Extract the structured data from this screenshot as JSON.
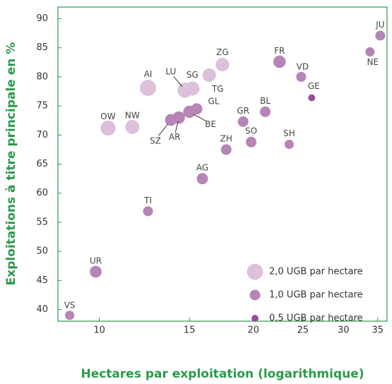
{
  "chart_data": {
    "type": "scatter",
    "x_label": "Hectares par exploitation (logarithmique)",
    "y_label": "Exploitations à titre principale en %",
    "xscale": "log",
    "xlim": [
      8.3,
      36.5
    ],
    "ylim": [
      38,
      92
    ],
    "xticks": [
      10,
      15,
      20,
      25,
      30,
      35
    ],
    "yticks": [
      40,
      45,
      50,
      55,
      60,
      65,
      70,
      75,
      80,
      85,
      90
    ],
    "labels": [
      "VS",
      "UR",
      "TI",
      "AG",
      "ZH",
      "SO",
      "SH",
      "GR",
      "BL",
      "OW",
      "NW",
      "SZ",
      "AR",
      "BE",
      "GL",
      "AI",
      "LU",
      "SG",
      "TG",
      "ZG",
      "FR",
      "VD",
      "GE",
      "NE",
      "JU"
    ],
    "x": [
      8.75,
      9.84,
      12.45,
      15.9,
      17.7,
      19.8,
      23.5,
      19.1,
      21.1,
      10.4,
      11.6,
      13.8,
      14.3,
      15.0,
      15.5,
      12.45,
      14.7,
      15.2,
      16.4,
      17.4,
      22.5,
      24.8,
      26.0,
      33.8,
      35.4
    ],
    "y": [
      39.0,
      46.5,
      56.9,
      62.5,
      67.5,
      68.8,
      68.4,
      72.3,
      74.0,
      71.2,
      71.4,
      72.6,
      73.0,
      74.0,
      74.5,
      78.1,
      77.7,
      78.0,
      80.3,
      82.1,
      82.6,
      80.0,
      76.4,
      84.3,
      87.1
    ],
    "sizes": [
      0.8,
      1.2,
      0.9,
      1.1,
      1.0,
      1.0,
      0.8,
      1.0,
      1.0,
      1.8,
      1.6,
      1.2,
      1.3,
      1.3,
      1.1,
      2.0,
      1.8,
      1.6,
      1.5,
      1.5,
      1.3,
      0.9,
      0.5,
      0.8,
      0.9
    ],
    "legend": [
      {
        "label": "2,0 UGB par hectare",
        "size": 2.0,
        "color": "#dcc0dc"
      },
      {
        "label": "1,0 UGB par hectare",
        "size": 1.0,
        "color": "#b685b6"
      },
      {
        "label": "0,5 UGB par hectare",
        "size": 0.5,
        "color": "#9a4c9a"
      }
    ]
  }
}
